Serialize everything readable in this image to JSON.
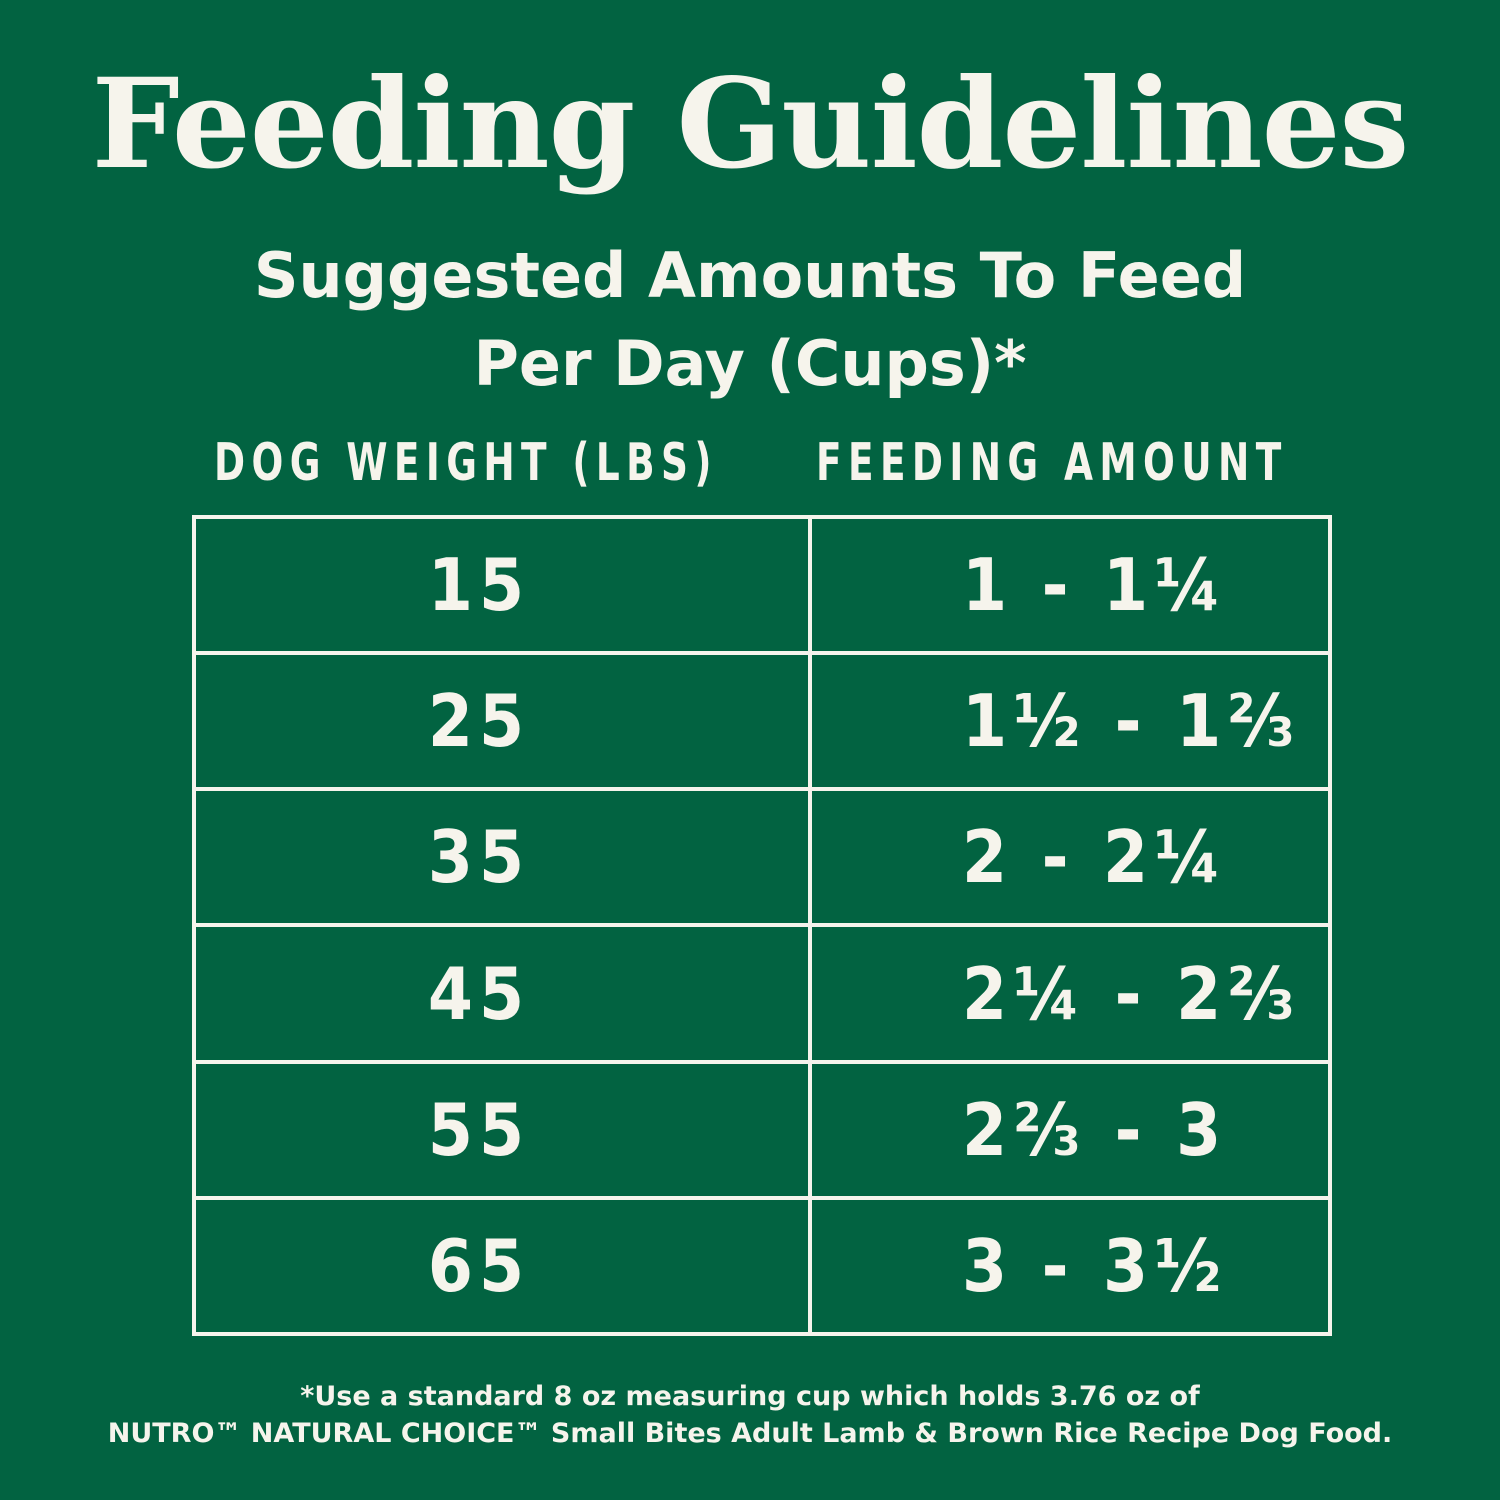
{
  "title": "Feeding Guidelines",
  "subtitle": {
    "line1": "Suggested Amounts To Feed",
    "line2": "Per Day (Cups)*"
  },
  "table": {
    "headers": {
      "weight": "DOG WEIGHT (LBS)",
      "amount": "FEEDING AMOUNT"
    },
    "rows": [
      {
        "weight": "15",
        "amount": "1 - 1¼"
      },
      {
        "weight": "25",
        "amount": "1½ - 1⅔"
      },
      {
        "weight": "35",
        "amount": "2 - 2¼"
      },
      {
        "weight": "45",
        "amount": "2¼ - 2⅔"
      },
      {
        "weight": "55",
        "amount": "2⅔ - 3"
      },
      {
        "weight": "65",
        "amount": "3 - 3½"
      }
    ]
  },
  "footnote": {
    "line1": "*Use a standard 8 oz measuring cup which holds 3.76 oz of",
    "line2": "NUTRO™ NATURAL CHOICE™ Small Bites Adult Lamb & Brown Rice Recipe Dog Food."
  },
  "colors": {
    "background": "#026341",
    "foreground": "#f6f4ec"
  }
}
